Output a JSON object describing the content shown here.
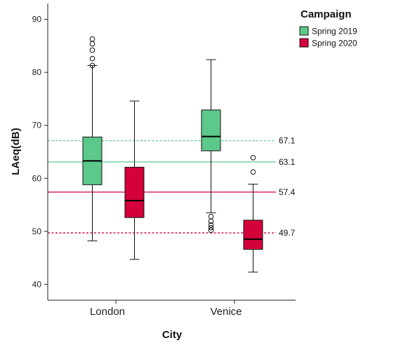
{
  "chart_data": {
    "type": "boxplot",
    "xlabel": "City",
    "ylabel": "LAeq(dB)",
    "ylim": [
      37,
      93
    ],
    "yticks": [
      40,
      50,
      60,
      70,
      80,
      90
    ],
    "categories": [
      "London",
      "Venice"
    ],
    "legend": {
      "title": "Campaign",
      "position": "top-right"
    },
    "series": [
      {
        "name": "Spring 2019",
        "color": "#5cc98a",
        "boxes": [
          {
            "category": "London",
            "min": 48.2,
            "q1": 58.8,
            "median": 63.3,
            "q3": 67.8,
            "max": 81.3,
            "outliers": [
              81.3,
              82.6,
              84.2,
              85.4,
              86.3
            ]
          },
          {
            "category": "Venice",
            "min": 53.5,
            "q1": 65.2,
            "median": 67.9,
            "q3": 72.9,
            "max": 82.4,
            "outliers": [
              50.2,
              50.7,
              51.2,
              51.9,
              52.8
            ]
          }
        ]
      },
      {
        "name": "Spring 2020",
        "color": "#d4003a",
        "boxes": [
          {
            "category": "London",
            "min": 44.7,
            "q1": 52.6,
            "median": 55.8,
            "q3": 62.1,
            "max": 74.6,
            "outliers": []
          },
          {
            "category": "Venice",
            "min": 42.3,
            "q1": 46.6,
            "median": 48.5,
            "q3": 52.1,
            "max": 58.9,
            "outliers": [
              61.2,
              63.9
            ]
          }
        ]
      }
    ],
    "reference_lines": [
      {
        "value": 67.1,
        "label": "67.1",
        "color": "#5cc98a",
        "style": "dashed"
      },
      {
        "value": 63.1,
        "label": "63.1",
        "color": "#5cc98a",
        "style": "solid"
      },
      {
        "value": 57.4,
        "label": "57.4",
        "color": "#d4003a",
        "style": "solid"
      },
      {
        "value": 49.7,
        "label": "49.7",
        "color": "#d4003a",
        "style": "dashed"
      }
    ]
  }
}
